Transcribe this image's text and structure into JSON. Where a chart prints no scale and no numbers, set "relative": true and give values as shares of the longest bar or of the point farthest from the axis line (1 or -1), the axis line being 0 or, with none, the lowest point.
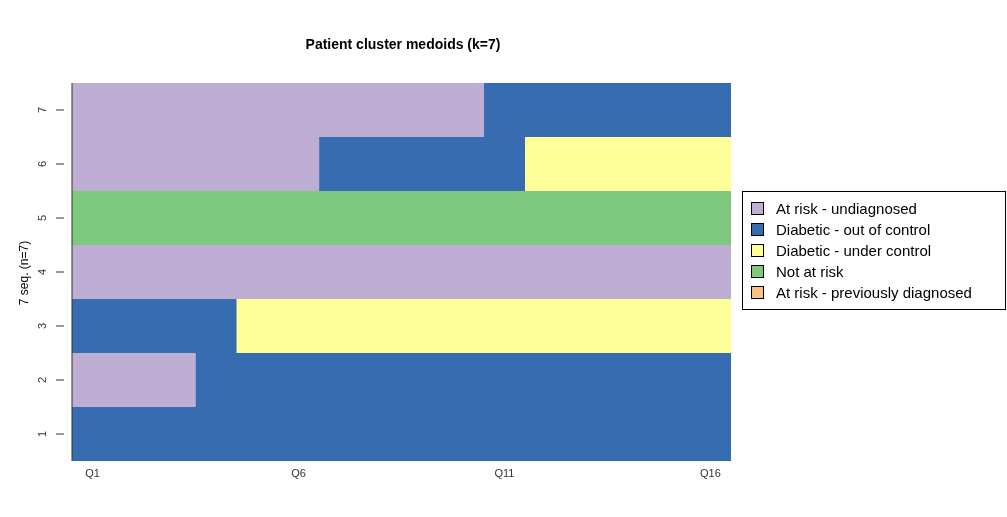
{
  "chart_data": {
    "type": "bar",
    "orientation": "horizontal",
    "stacked": true,
    "relative": true,
    "title": "Patient cluster medoids (k=7)",
    "ylabel": "7 seq. (n=7)",
    "categories": [
      "7",
      "6",
      "5",
      "4",
      "3",
      "2",
      "1"
    ],
    "series": [
      {
        "name": "At risk - undiagnosed",
        "color": "#beaed4",
        "values": [
          0.625,
          0.375,
          0,
          1,
          0,
          0.1875,
          0
        ]
      },
      {
        "name": "Diabetic - out of control",
        "color": "#386cb0",
        "values": [
          0.375,
          0.3125,
          0,
          0,
          0.25,
          0.8125,
          1
        ]
      },
      {
        "name": "Diabetic - under control",
        "color": "#ffff99",
        "values": [
          0,
          0.3125,
          0,
          0,
          0.75,
          0,
          0
        ]
      },
      {
        "name": "Not at risk",
        "color": "#7fc97f",
        "values": [
          0,
          0,
          1,
          0,
          0,
          0,
          0
        ]
      },
      {
        "name": "At risk - previously diagnosed",
        "color": "#fdc086",
        "values": [
          0,
          0,
          0,
          0,
          0,
          0,
          0
        ]
      }
    ],
    "annotations": [
      "Q1",
      "Q6",
      "Q11",
      "Q16"
    ],
    "legend": "right"
  }
}
